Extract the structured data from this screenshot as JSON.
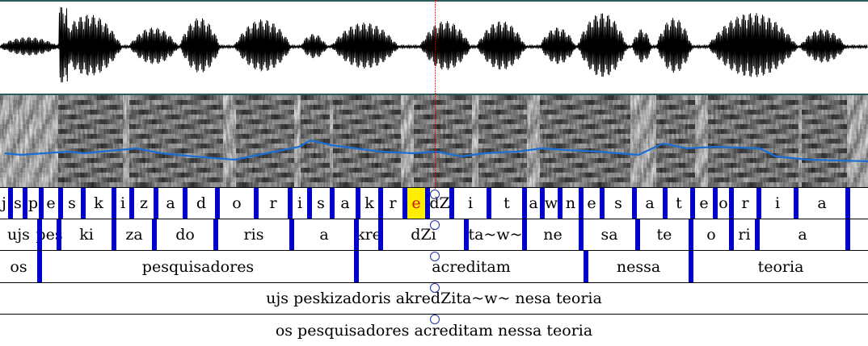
{
  "colors": {
    "boundary": "#0000cc",
    "pitch": "#1a6fd6",
    "waveform": "#000000",
    "selection_fill": "#ffee00",
    "selection_text": "#d01010",
    "cursor": "#b00000"
  },
  "tiers": {
    "phones": [
      {
        "text": "j",
        "selected": false
      },
      {
        "text": "s",
        "selected": false
      },
      {
        "text": "p",
        "selected": false
      },
      {
        "text": "e",
        "selected": false
      },
      {
        "text": "s",
        "selected": false
      },
      {
        "text": "k",
        "selected": false
      },
      {
        "text": "i",
        "selected": false
      },
      {
        "text": "z",
        "selected": false
      },
      {
        "text": "a",
        "selected": false
      },
      {
        "text": "d",
        "selected": false
      },
      {
        "text": "o",
        "selected": false
      },
      {
        "text": "r",
        "selected": false
      },
      {
        "text": "i",
        "selected": false
      },
      {
        "text": "s",
        "selected": false
      },
      {
        "text": "a",
        "selected": false
      },
      {
        "text": "k",
        "selected": false
      },
      {
        "text": "r",
        "selected": false
      },
      {
        "text": "e",
        "selected": true
      },
      {
        "text": "dZ",
        "selected": false
      },
      {
        "text": "i",
        "selected": false
      },
      {
        "text": "t",
        "selected": false
      },
      {
        "text": "a",
        "selected": false
      },
      {
        "text": "w",
        "selected": false
      },
      {
        "text": "n",
        "selected": false
      },
      {
        "text": "e",
        "selected": false
      },
      {
        "text": "s",
        "selected": false
      },
      {
        "text": "a",
        "selected": false
      },
      {
        "text": "t",
        "selected": false
      },
      {
        "text": "e",
        "selected": false
      },
      {
        "text": "o",
        "selected": false
      },
      {
        "text": "r",
        "selected": false
      },
      {
        "text": "i",
        "selected": false
      },
      {
        "text": "a",
        "selected": false
      }
    ],
    "syllables": [
      {
        "text": "ujs"
      },
      {
        "text": "pes"
      },
      {
        "text": "ki"
      },
      {
        "text": "za"
      },
      {
        "text": "do"
      },
      {
        "text": "ris"
      },
      {
        "text": "a"
      },
      {
        "text": "kre"
      },
      {
        "text": "dZi"
      },
      {
        "text": "ta~w~"
      },
      {
        "text": "ne"
      },
      {
        "text": "sa"
      },
      {
        "text": "te"
      },
      {
        "text": "o"
      },
      {
        "text": "ri"
      },
      {
        "text": "a"
      }
    ],
    "words": [
      {
        "text": "os"
      },
      {
        "text": "pesquisadores"
      },
      {
        "text": "acreditam"
      },
      {
        "text": "nessa"
      },
      {
        "text": "teoria"
      }
    ],
    "phonetic_sentence": "ujs peskizadoris akredZita~w~ nesa teoria",
    "orthographic_sentence": "os pesquisadores acreditam nessa teoria"
  }
}
